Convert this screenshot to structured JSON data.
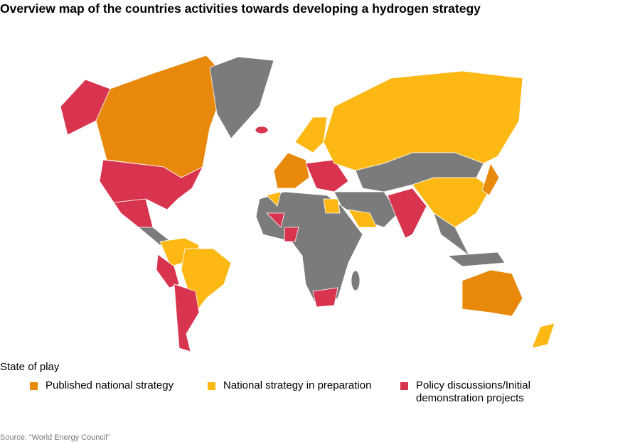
{
  "title": "Overview map of the countries activities towards developing a hydrogen strategy",
  "legend": {
    "title": "State of play",
    "items": [
      {
        "label": "Published national strategy",
        "color": "#e8890c"
      },
      {
        "label": "National strategy in preparation",
        "color": "#fdb813"
      },
      {
        "label": "Policy discussions/Initial demonstration projects",
        "color": "#d9344f"
      }
    ]
  },
  "source": "Source: “World Energy Council”"
}
